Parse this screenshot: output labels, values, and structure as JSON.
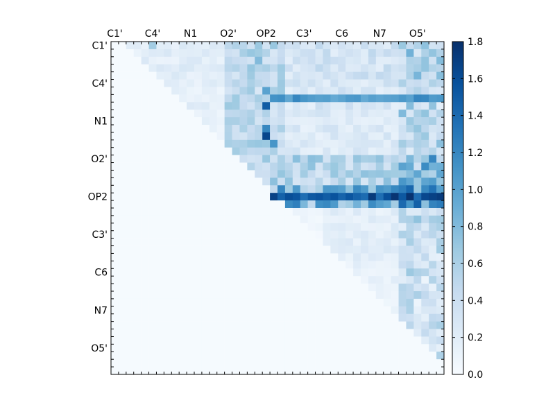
{
  "chart_data": {
    "type": "heatmap",
    "title": "",
    "xlabel": "",
    "ylabel": "",
    "grid_size": 44,
    "x_tick_labels": [
      "C1'",
      "C4'",
      "N1",
      "O2'",
      "OP2",
      "C3'",
      "C6",
      "N7",
      "O5'"
    ],
    "y_tick_labels": [
      "C1'",
      "C4'",
      "N1",
      "O2'",
      "OP2",
      "C3'",
      "C6",
      "N7",
      "O5'"
    ],
    "x_tick_positions": [
      0,
      5,
      10,
      15,
      20,
      25,
      30,
      35,
      40
    ],
    "y_tick_positions": [
      0,
      5,
      10,
      15,
      20,
      25,
      30,
      35,
      40
    ],
    "colormap": "Blues",
    "colormap_stops": [
      "#f7fbff",
      "#deebf7",
      "#c6dbef",
      "#9ecae1",
      "#6baed6",
      "#4292c6",
      "#2171b5",
      "#08519c",
      "#08306b"
    ],
    "value_range": [
      0.0,
      1.8
    ],
    "colorbar": {
      "ticks": [
        0.0,
        0.2,
        0.4,
        0.6,
        0.8,
        1.0,
        1.2,
        1.4,
        1.6,
        1.8
      ],
      "tick_labels": [
        "0.0",
        "0.2",
        "0.4",
        "0.6",
        "0.8",
        "1.0",
        "1.2",
        "1.4",
        "1.6",
        "1.8"
      ],
      "position": "right"
    },
    "row_profile": {
      "base_by_row_range": [
        {
          "rows": [
            0,
            4
          ],
          "value": 0.35
        },
        {
          "rows": [
            5,
            8
          ],
          "value": 0.3
        },
        {
          "rows": [
            9,
            14
          ],
          "value": 0.25
        },
        {
          "rows": [
            15,
            18
          ],
          "value": 0.55
        },
        {
          "rows": [
            19,
            21
          ],
          "value": 0.9
        },
        {
          "rows": [
            22,
            28
          ],
          "value": 0.2
        },
        {
          "rows": [
            29,
            42
          ],
          "value": 0.15
        }
      ],
      "strong_rows": [
        {
          "row": 7,
          "value": 1.05
        },
        {
          "row": 20,
          "value": 1.55
        }
      ],
      "strong_cols_start": 22,
      "block_rows": [
        0,
        15
      ],
      "block_cols": [
        15,
        22
      ],
      "block_value": 0.55,
      "hot_cells": [
        {
          "row": 8,
          "col": 20,
          "value": 1.5
        },
        {
          "row": 12,
          "col": 20,
          "value": 1.65
        },
        {
          "row": 11,
          "col": 20,
          "value": 1.2
        },
        {
          "row": 6,
          "col": 20,
          "value": 1.0
        },
        {
          "row": 13,
          "col": 21,
          "value": 1.1
        },
        {
          "row": 2,
          "col": 19,
          "value": 0.8
        },
        {
          "row": 0,
          "col": 5,
          "value": 0.65
        }
      ],
      "right_cols": [
        38,
        43
      ],
      "right_value_boost": 0.25
    }
  }
}
